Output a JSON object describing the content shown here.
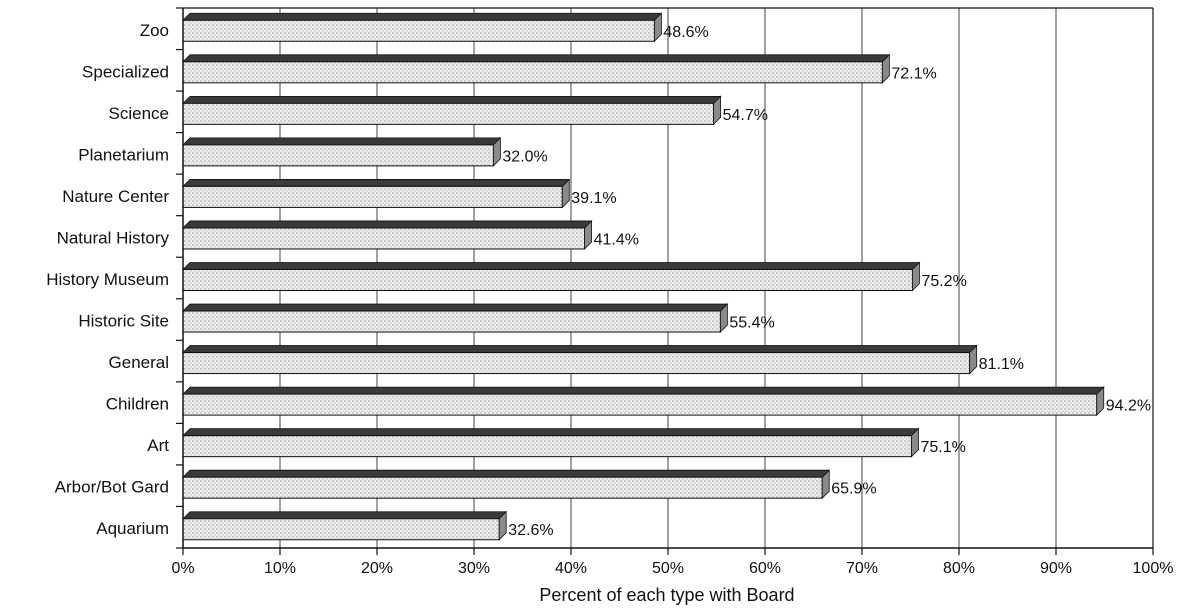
{
  "chart_data": {
    "type": "bar",
    "orientation": "horizontal",
    "categories": [
      "Zoo",
      "Specialized",
      "Science",
      "Planetarium",
      "Nature Center",
      "Natural History",
      "History Museum",
      "Historic Site",
      "General",
      "Children",
      "Art",
      "Arbor/Bot Gard",
      "Aquarium"
    ],
    "values": [
      48.6,
      72.1,
      54.7,
      32.0,
      39.1,
      41.4,
      75.2,
      55.4,
      81.1,
      94.2,
      75.1,
      65.9,
      32.6
    ],
    "value_labels": [
      "48.6%",
      "72.1%",
      "54.7%",
      "32.0%",
      "39.1%",
      "41.4%",
      "75.2%",
      "55.4%",
      "81.1%",
      "94.2%",
      "75.1%",
      "65.9%",
      "32.6%"
    ],
    "xlabel": "Percent of each type with Board",
    "ylabel": "",
    "xlim": [
      0,
      100
    ],
    "x_ticks": [
      0,
      10,
      20,
      30,
      40,
      50,
      60,
      70,
      80,
      90,
      100
    ],
    "x_tick_labels": [
      "0%",
      "10%",
      "20%",
      "30%",
      "40%",
      "50%",
      "60%",
      "70%",
      "80%",
      "90%",
      "100%"
    ],
    "grid": "vertical",
    "legend": "none",
    "colors": {
      "bar_face": "#e4e4e4",
      "bar_top": "#3a3a3a",
      "bar_side": "#8a8a8a",
      "gridline": "#444444",
      "axis": "#111111"
    }
  }
}
